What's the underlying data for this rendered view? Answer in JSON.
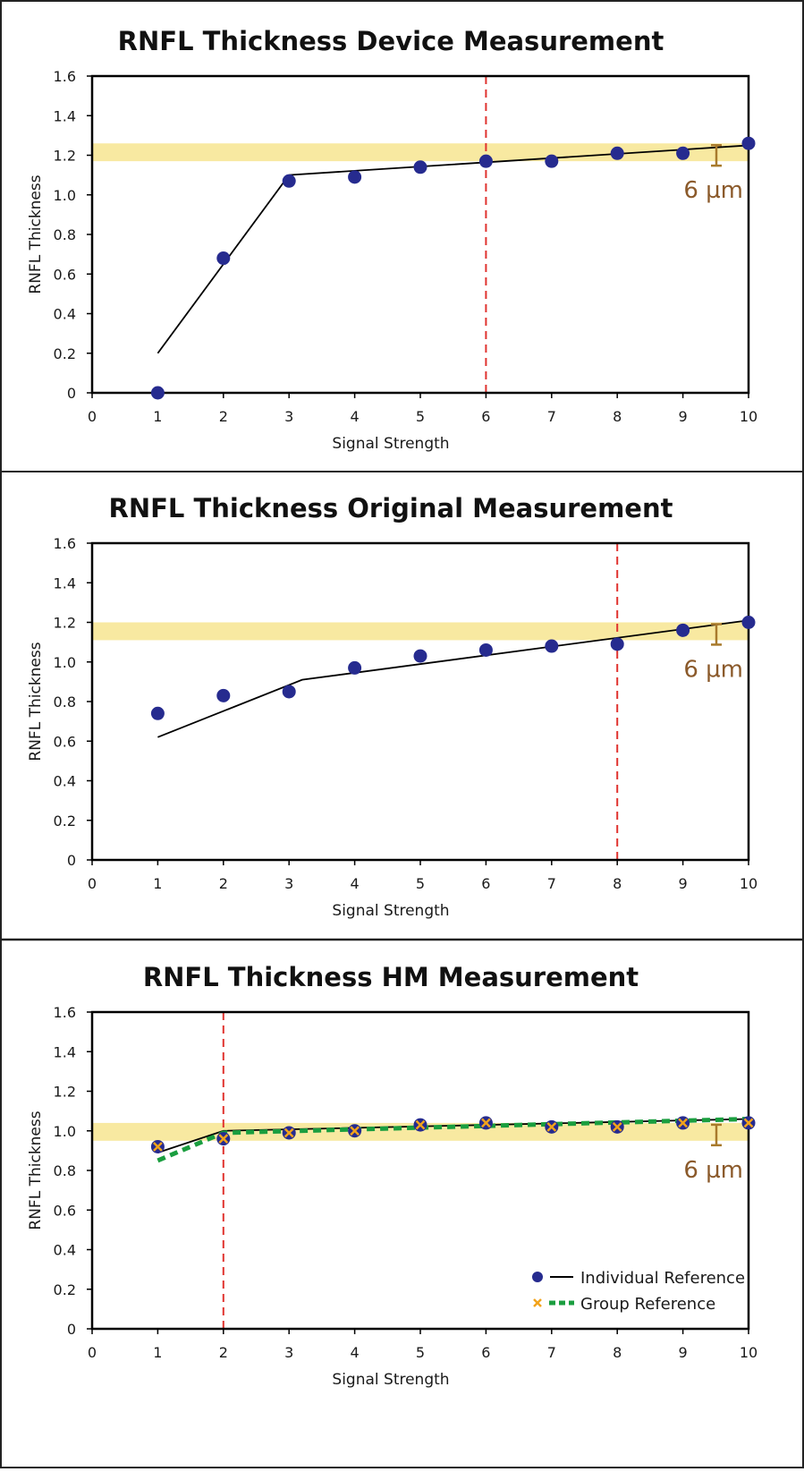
{
  "chart_data": [
    {
      "type": "scatter",
      "title": "RNFL Thickness Device Measurement",
      "xlabel": "Signal Strength",
      "ylabel": "RNFL Thickness",
      "xlim": [
        0,
        10
      ],
      "ylim": [
        0,
        1.6
      ],
      "x_ticks": [
        "0",
        "1",
        "2",
        "3",
        "4",
        "5",
        "6",
        "7",
        "8",
        "9",
        "10"
      ],
      "y_ticks": [
        "0",
        "0.2",
        "0.4",
        "0.6",
        "0.8",
        "1.0",
        "1.2",
        "1.4",
        "1.6"
      ],
      "band": [
        1.17,
        1.26
      ],
      "cutoff_x": 6,
      "annotation": "6 µm",
      "series": [
        {
          "kind": "points",
          "color": "#262b8f",
          "x": [
            1,
            2,
            3,
            4,
            5,
            6,
            7,
            8,
            9,
            10
          ],
          "y": [
            0.0,
            0.68,
            1.07,
            1.09,
            1.14,
            1.17,
            1.17,
            1.21,
            1.21,
            1.26
          ]
        },
        {
          "kind": "line",
          "color": "#000000",
          "x": [
            1,
            3,
            10
          ],
          "y": [
            0.2,
            1.1,
            1.25
          ]
        }
      ]
    },
    {
      "type": "scatter",
      "title": "RNFL Thickness Original Measurement",
      "xlabel": "Signal Strength",
      "ylabel": "RNFL Thickness",
      "xlim": [
        0,
        10
      ],
      "ylim": [
        0,
        1.6
      ],
      "x_ticks": [
        "0",
        "1",
        "2",
        "3",
        "4",
        "5",
        "6",
        "7",
        "8",
        "9",
        "10"
      ],
      "y_ticks": [
        "0",
        "0.2",
        "0.4",
        "0.6",
        "0.8",
        "1.0",
        "1.2",
        "1.4",
        "1.6"
      ],
      "band": [
        1.11,
        1.2
      ],
      "cutoff_x": 8,
      "annotation": "6 µm",
      "series": [
        {
          "kind": "points",
          "color": "#262b8f",
          "x": [
            1,
            2,
            3,
            4,
            5,
            6,
            7,
            8,
            9,
            10
          ],
          "y": [
            0.74,
            0.83,
            0.85,
            0.97,
            1.03,
            1.06,
            1.08,
            1.09,
            1.16,
            1.2
          ]
        },
        {
          "kind": "line",
          "color": "#000000",
          "x": [
            1,
            3.2,
            10
          ],
          "y": [
            0.62,
            0.91,
            1.21
          ]
        }
      ]
    },
    {
      "type": "scatter",
      "title": "RNFL Thickness HM Measurement",
      "xlabel": "Signal Strength",
      "ylabel": "RNFL Thickness",
      "xlim": [
        0,
        10
      ],
      "ylim": [
        0,
        1.6
      ],
      "x_ticks": [
        "0",
        "1",
        "2",
        "3",
        "4",
        "5",
        "6",
        "7",
        "8",
        "9",
        "10"
      ],
      "y_ticks": [
        "0",
        "0.2",
        "0.4",
        "0.6",
        "0.8",
        "1.0",
        "1.2",
        "1.4",
        "1.6"
      ],
      "band": [
        0.95,
        1.04
      ],
      "cutoff_x": 2,
      "annotation": "6 µm",
      "legend_position": "bottom-right",
      "series": [
        {
          "kind": "points",
          "name": "Individual Reference",
          "color": "#262b8f",
          "x": [
            1,
            2,
            3,
            4,
            5,
            6,
            7,
            8,
            9,
            10
          ],
          "y": [
            0.92,
            0.96,
            0.99,
            1.0,
            1.03,
            1.04,
            1.02,
            1.02,
            1.04,
            1.04
          ]
        },
        {
          "kind": "line",
          "name": "Individual Reference",
          "color": "#000000",
          "x": [
            1,
            2,
            10
          ],
          "y": [
            0.89,
            1.0,
            1.06
          ]
        },
        {
          "kind": "crosses",
          "name": "Group Reference",
          "color": "#f2a31b",
          "x": [
            1,
            2,
            3,
            4,
            5,
            6,
            7,
            8,
            9,
            10
          ],
          "y": [
            0.92,
            0.96,
            0.99,
            1.0,
            1.03,
            1.04,
            1.02,
            1.02,
            1.04,
            1.04
          ]
        },
        {
          "kind": "dashed",
          "name": "Group Reference",
          "color": "#1a9e3f",
          "x": [
            1,
            2,
            10
          ],
          "y": [
            0.85,
            0.99,
            1.06
          ]
        }
      ]
    }
  ]
}
